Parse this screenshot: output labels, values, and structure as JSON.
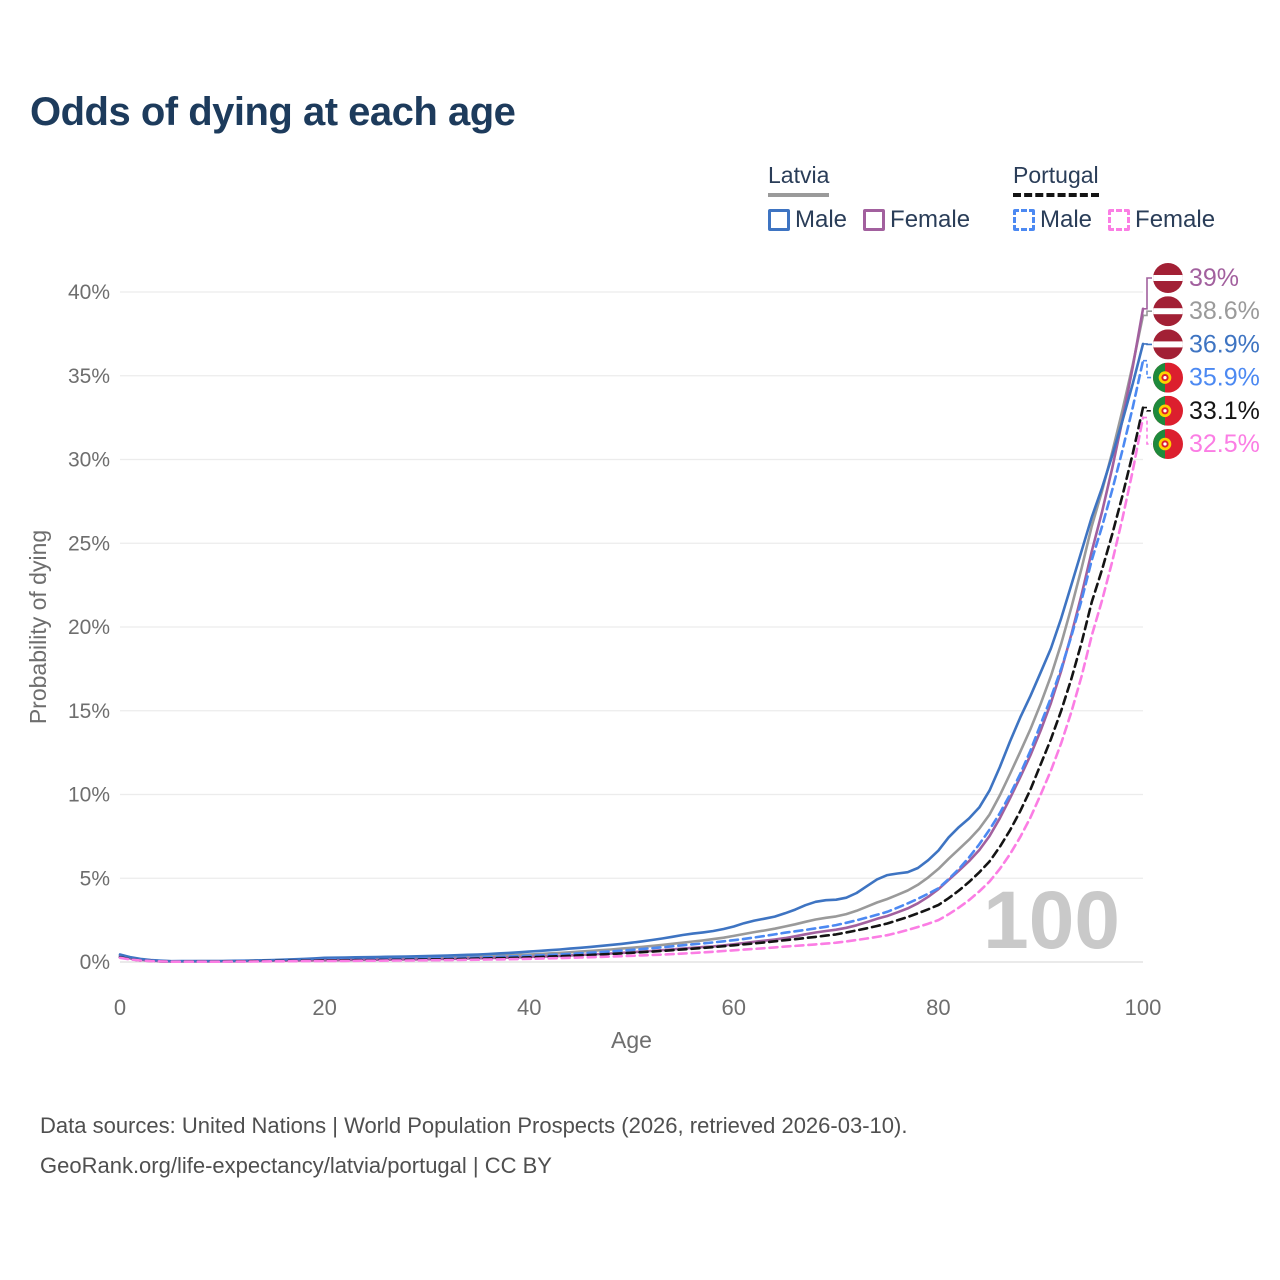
{
  "title": "Odds of dying at each age",
  "legend": {
    "groups": [
      {
        "label": "Latvia",
        "line_color": "#9a9a9a",
        "line_style": "solid",
        "items": [
          {
            "label": "Male",
            "color": "#3e74c2",
            "dashed": false
          },
          {
            "label": "Female",
            "color": "#a2609e",
            "dashed": false
          }
        ]
      },
      {
        "label": "Portugal",
        "line_color": "#141414",
        "line_style": "dashed",
        "items": [
          {
            "label": "Male",
            "color": "#4c89f2",
            "dashed": true
          },
          {
            "label": "Female",
            "color": "#fb7de4",
            "dashed": true
          }
        ]
      }
    ]
  },
  "footer": {
    "line1": "Data sources: United Nations | World Population Prospects (2026, retrieved 2026-03-10).",
    "line2": "GeoRank.org/life-expectancy/latvia/portugal | CC BY"
  },
  "chart_data": {
    "type": "line",
    "title": "Odds of dying at each age",
    "xlabel": "Age",
    "ylabel": "Probability of dying",
    "xlim": [
      0,
      100
    ],
    "ylim": [
      0,
      40
    ],
    "grid": "horizontal",
    "legend_position": "top-right",
    "watermark": "100",
    "x_axis": {
      "tick_values": [
        0,
        20,
        40,
        60,
        80,
        100
      ],
      "ticks": [
        "0",
        "20",
        "40",
        "60",
        "80",
        "100"
      ]
    },
    "y_axis": {
      "tick_values": [
        0,
        5,
        10,
        15,
        20,
        25,
        30,
        35,
        40
      ],
      "ticks": [
        "0%",
        "5%",
        "10%",
        "15%",
        "20%",
        "25%",
        "30%",
        "35%",
        "40%"
      ]
    },
    "x": [
      0,
      5,
      10,
      15,
      20,
      25,
      30,
      35,
      40,
      45,
      50,
      55,
      60,
      65,
      70,
      75,
      80,
      85,
      90,
      95,
      100
    ],
    "series": [
      {
        "name": "Latvia Both sexes",
        "color": "#9a9a9a",
        "dash": "solid",
        "end_label": "38.6%",
        "values": [
          0.4,
          0.04,
          0.05,
          0.1,
          0.18,
          0.22,
          0.26,
          0.34,
          0.45,
          0.62,
          0.85,
          1.15,
          1.55,
          2.15,
          2.75,
          3.7,
          5.5,
          8.9,
          15.5,
          26.0,
          38.6
        ]
      },
      {
        "name": "Latvia Female",
        "color": "#a2609e",
        "dash": "solid",
        "end_label": "39%",
        "values": [
          0.35,
          0.03,
          0.04,
          0.07,
          0.1,
          0.13,
          0.16,
          0.22,
          0.3,
          0.42,
          0.58,
          0.8,
          1.05,
          1.45,
          1.95,
          2.7,
          4.3,
          7.6,
          13.9,
          24.5,
          39.0
        ]
      },
      {
        "name": "Latvia Male",
        "color": "#3e74c2",
        "dash": "solid",
        "end_label": "36.9%",
        "values": [
          0.45,
          0.05,
          0.06,
          0.12,
          0.25,
          0.3,
          0.35,
          0.45,
          0.62,
          0.85,
          1.15,
          1.6,
          2.1,
          3.0,
          3.8,
          5.0,
          6.5,
          10.5,
          17.5,
          26.5,
          36.9
        ]
      },
      {
        "name": "Portugal Male",
        "color": "#4c89f2",
        "dash": "dashed",
        "end_label": "35.9%",
        "values": [
          0.3,
          0.03,
          0.04,
          0.08,
          0.13,
          0.16,
          0.2,
          0.27,
          0.37,
          0.52,
          0.72,
          1.0,
          1.3,
          1.75,
          2.2,
          3.0,
          4.4,
          7.9,
          14.2,
          24.0,
          35.9
        ]
      },
      {
        "name": "Portugal Both sexes",
        "color": "#141414",
        "dash": "dashed",
        "end_label": "33.1%",
        "values": [
          0.28,
          0.02,
          0.03,
          0.06,
          0.1,
          0.12,
          0.15,
          0.2,
          0.28,
          0.4,
          0.55,
          0.75,
          1.0,
          1.3,
          1.65,
          2.3,
          3.4,
          6.0,
          11.8,
          21.5,
          33.1
        ]
      },
      {
        "name": "Portugal Female",
        "color": "#fb7de4",
        "dash": "dashed",
        "end_label": "32.5%",
        "values": [
          0.25,
          0.02,
          0.02,
          0.04,
          0.06,
          0.08,
          0.1,
          0.14,
          0.19,
          0.27,
          0.37,
          0.5,
          0.7,
          0.92,
          1.15,
          1.6,
          2.5,
          4.8,
          10.0,
          19.5,
          32.5
        ]
      }
    ],
    "end_labels": [
      {
        "text": "39%",
        "value": 39.0,
        "color": "#a2609e",
        "dashed": false,
        "flag": "latvia"
      },
      {
        "text": "38.6%",
        "value": 38.6,
        "color": "#9a9a9a",
        "dashed": false,
        "flag": "latvia"
      },
      {
        "text": "36.9%",
        "value": 36.9,
        "color": "#3e74c2",
        "dashed": false,
        "flag": "latvia"
      },
      {
        "text": "35.9%",
        "value": 35.9,
        "color": "#4c89f2",
        "dashed": true,
        "flag": "portugal"
      },
      {
        "text": "33.1%",
        "value": 33.1,
        "color": "#141414",
        "dashed": true,
        "flag": "portugal"
      },
      {
        "text": "32.5%",
        "value": 32.5,
        "color": "#fb7de4",
        "dashed": true,
        "flag": "portugal"
      }
    ]
  }
}
